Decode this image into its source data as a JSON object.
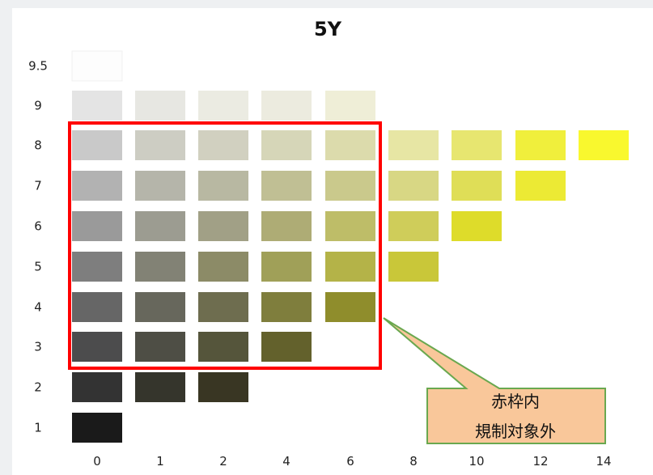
{
  "chart_data": {
    "type": "heatmap",
    "title": "5Y",
    "xlabel": "",
    "ylabel": "",
    "x_ticks": [
      "0",
      "1",
      "2",
      "4",
      "6",
      "8",
      "10",
      "12",
      "14"
    ],
    "y_ticks": [
      "9.5",
      "9",
      "8",
      "7",
      "6",
      "5",
      "4",
      "3",
      "2",
      "1"
    ],
    "grid": false,
    "swatches": [
      {
        "value": "9.5",
        "chroma": "0",
        "color": "#fdfdfd"
      },
      {
        "value": "9",
        "chroma": "0",
        "color": "#e4e4e4"
      },
      {
        "value": "9",
        "chroma": "1",
        "color": "#e7e7e2"
      },
      {
        "value": "9",
        "chroma": "2",
        "color": "#ebebe2"
      },
      {
        "value": "9",
        "chroma": "4",
        "color": "#ecebdf"
      },
      {
        "value": "9",
        "chroma": "6",
        "color": "#efeed7"
      },
      {
        "value": "8",
        "chroma": "0",
        "color": "#c9c9c9"
      },
      {
        "value": "8",
        "chroma": "1",
        "color": "#cdcdc3"
      },
      {
        "value": "8",
        "chroma": "2",
        "color": "#d1d0c0"
      },
      {
        "value": "8",
        "chroma": "4",
        "color": "#d6d6b8"
      },
      {
        "value": "8",
        "chroma": "6",
        "color": "#dcdbac"
      },
      {
        "value": "8",
        "chroma": "8",
        "color": "#e7e6a4"
      },
      {
        "value": "8",
        "chroma": "10",
        "color": "#e7e670"
      },
      {
        "value": "8",
        "chroma": "12",
        "color": "#f0ef3c"
      },
      {
        "value": "8",
        "chroma": "14",
        "color": "#f9f82e"
      },
      {
        "value": "7",
        "chroma": "0",
        "color": "#b2b2b2"
      },
      {
        "value": "7",
        "chroma": "1",
        "color": "#b5b5aa"
      },
      {
        "value": "7",
        "chroma": "2",
        "color": "#b8b8a2"
      },
      {
        "value": "7",
        "chroma": "4",
        "color": "#c0bf94"
      },
      {
        "value": "7",
        "chroma": "6",
        "color": "#cac98c"
      },
      {
        "value": "7",
        "chroma": "8",
        "color": "#d8d784"
      },
      {
        "value": "7",
        "chroma": "10",
        "color": "#dfde57"
      },
      {
        "value": "7",
        "chroma": "12",
        "color": "#ecea34"
      },
      {
        "value": "6",
        "chroma": "0",
        "color": "#9a9a9a"
      },
      {
        "value": "6",
        "chroma": "1",
        "color": "#9c9c91"
      },
      {
        "value": "6",
        "chroma": "2",
        "color": "#a1a086"
      },
      {
        "value": "6",
        "chroma": "4",
        "color": "#aeac75"
      },
      {
        "value": "6",
        "chroma": "6",
        "color": "#bebd68"
      },
      {
        "value": "6",
        "chroma": "8",
        "color": "#cfcd5a"
      },
      {
        "value": "6",
        "chroma": "10",
        "color": "#dedc2a"
      },
      {
        "value": "5",
        "chroma": "0",
        "color": "#7e7e7e"
      },
      {
        "value": "5",
        "chroma": "1",
        "color": "#828275"
      },
      {
        "value": "5",
        "chroma": "2",
        "color": "#8c8b67"
      },
      {
        "value": "5",
        "chroma": "4",
        "color": "#a0a058"
      },
      {
        "value": "5",
        "chroma": "6",
        "color": "#b4b348"
      },
      {
        "value": "5",
        "chroma": "8",
        "color": "#c9c739"
      },
      {
        "value": "4",
        "chroma": "0",
        "color": "#666666"
      },
      {
        "value": "4",
        "chroma": "1",
        "color": "#67675c"
      },
      {
        "value": "4",
        "chroma": "2",
        "color": "#6e6d4f"
      },
      {
        "value": "4",
        "chroma": "4",
        "color": "#7f7e3d"
      },
      {
        "value": "4",
        "chroma": "6",
        "color": "#8f8d2c"
      },
      {
        "value": "3",
        "chroma": "0",
        "color": "#4c4c4d"
      },
      {
        "value": "3",
        "chroma": "1",
        "color": "#4e4e45"
      },
      {
        "value": "3",
        "chroma": "2",
        "color": "#55553b"
      },
      {
        "value": "3",
        "chroma": "4",
        "color": "#63612c"
      },
      {
        "value": "2",
        "chroma": "0",
        "color": "#333333"
      },
      {
        "value": "2",
        "chroma": "1",
        "color": "#35352c"
      },
      {
        "value": "2",
        "chroma": "2",
        "color": "#393623"
      },
      {
        "value": "1",
        "chroma": "0",
        "color": "#1a1a1a"
      }
    ],
    "highlight": {
      "border_color": "#ff0000",
      "chroma_range": [
        "0",
        "6"
      ],
      "value_range": [
        "3",
        "8"
      ]
    }
  },
  "callout": {
    "lines": [
      "赤枠内",
      "規制対象外"
    ],
    "fill": "#f9c79a",
    "border": "#6aa84f"
  }
}
